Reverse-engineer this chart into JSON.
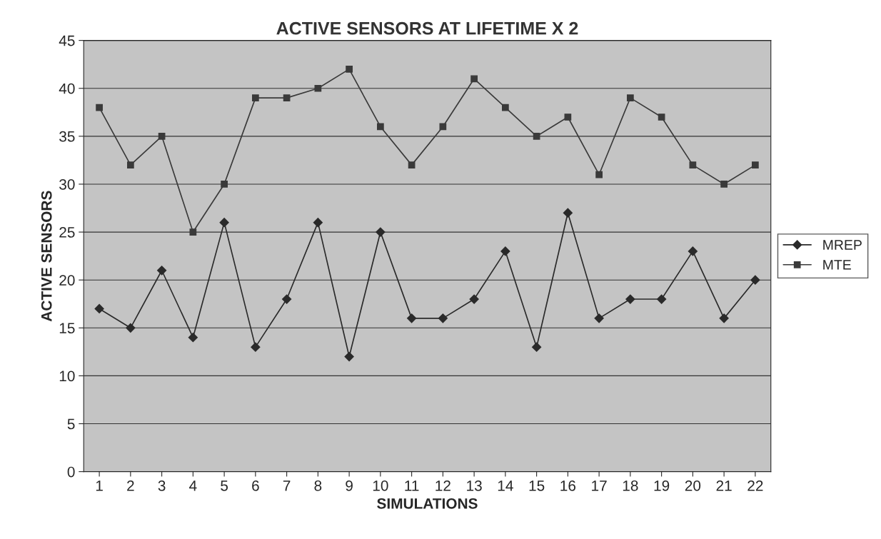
{
  "chart_data": {
    "type": "line",
    "title": "ACTIVE SENSORS AT LIFETIME X 2",
    "xlabel": "SIMULATIONS",
    "ylabel": "ACTIVE SENSORS",
    "categories": [
      "1",
      "2",
      "3",
      "4",
      "5",
      "6",
      "7",
      "8",
      "9",
      "10",
      "11",
      "12",
      "13",
      "14",
      "15",
      "16",
      "17",
      "18",
      "19",
      "20",
      "21",
      "22"
    ],
    "series": [
      {
        "name": "MREP",
        "color": "#2a2a2a",
        "marker": "diamond",
        "values": [
          17,
          15,
          21,
          14,
          26,
          13,
          18,
          26,
          12,
          25,
          16,
          16,
          18,
          23,
          13,
          27,
          16,
          18,
          18,
          23,
          16,
          20
        ]
      },
      {
        "name": "MTE",
        "color": "#3a3a3a",
        "marker": "square",
        "values": [
          38,
          32,
          35,
          25,
          30,
          39,
          39,
          40,
          42,
          36,
          32,
          36,
          41,
          38,
          35,
          37,
          31,
          39,
          37,
          32,
          30,
          32
        ]
      }
    ],
    "ylim": [
      0,
      45
    ],
    "yticks": [
      0,
      5,
      10,
      15,
      20,
      25,
      30,
      35,
      40,
      45
    ],
    "grid": "y",
    "legend": "right",
    "line_style": "solid"
  }
}
